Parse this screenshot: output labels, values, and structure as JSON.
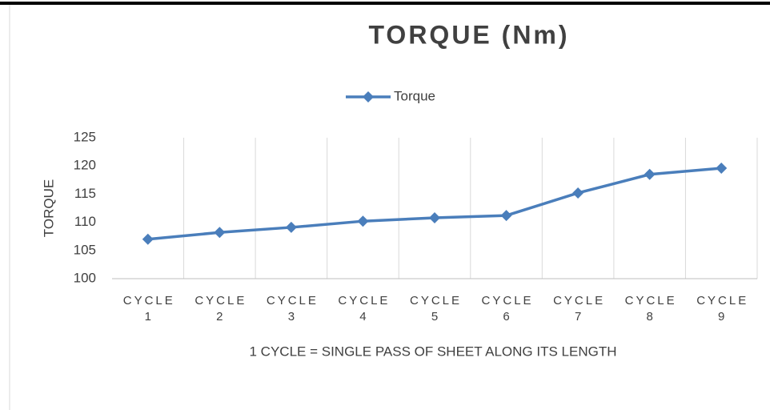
{
  "chart_data": {
    "type": "line",
    "title": "TORQUE (Nm)",
    "x_label": "1 CYCLE = SINGLE PASS OF SHEET ALONG ITS LENGTH",
    "y_label": "TORQUE",
    "categories": [
      "CYCLE 1",
      "CYCLE 2",
      "CYCLE 3",
      "CYCLE 4",
      "CYCLE 5",
      "CYCLE 6",
      "CYCLE 7",
      "CYCLE 8",
      "CYCLE 9"
    ],
    "series": [
      {
        "name": "Torque",
        "color": "#4a7ebb",
        "values": [
          107.0,
          108.2,
          109.1,
          110.2,
          110.8,
          111.2,
          115.2,
          118.5,
          119.6
        ]
      }
    ],
    "ylim": [
      100,
      125
    ],
    "yticks": [
      100,
      105,
      110,
      115,
      120,
      125
    ],
    "grid": "x",
    "legend": "top"
  }
}
